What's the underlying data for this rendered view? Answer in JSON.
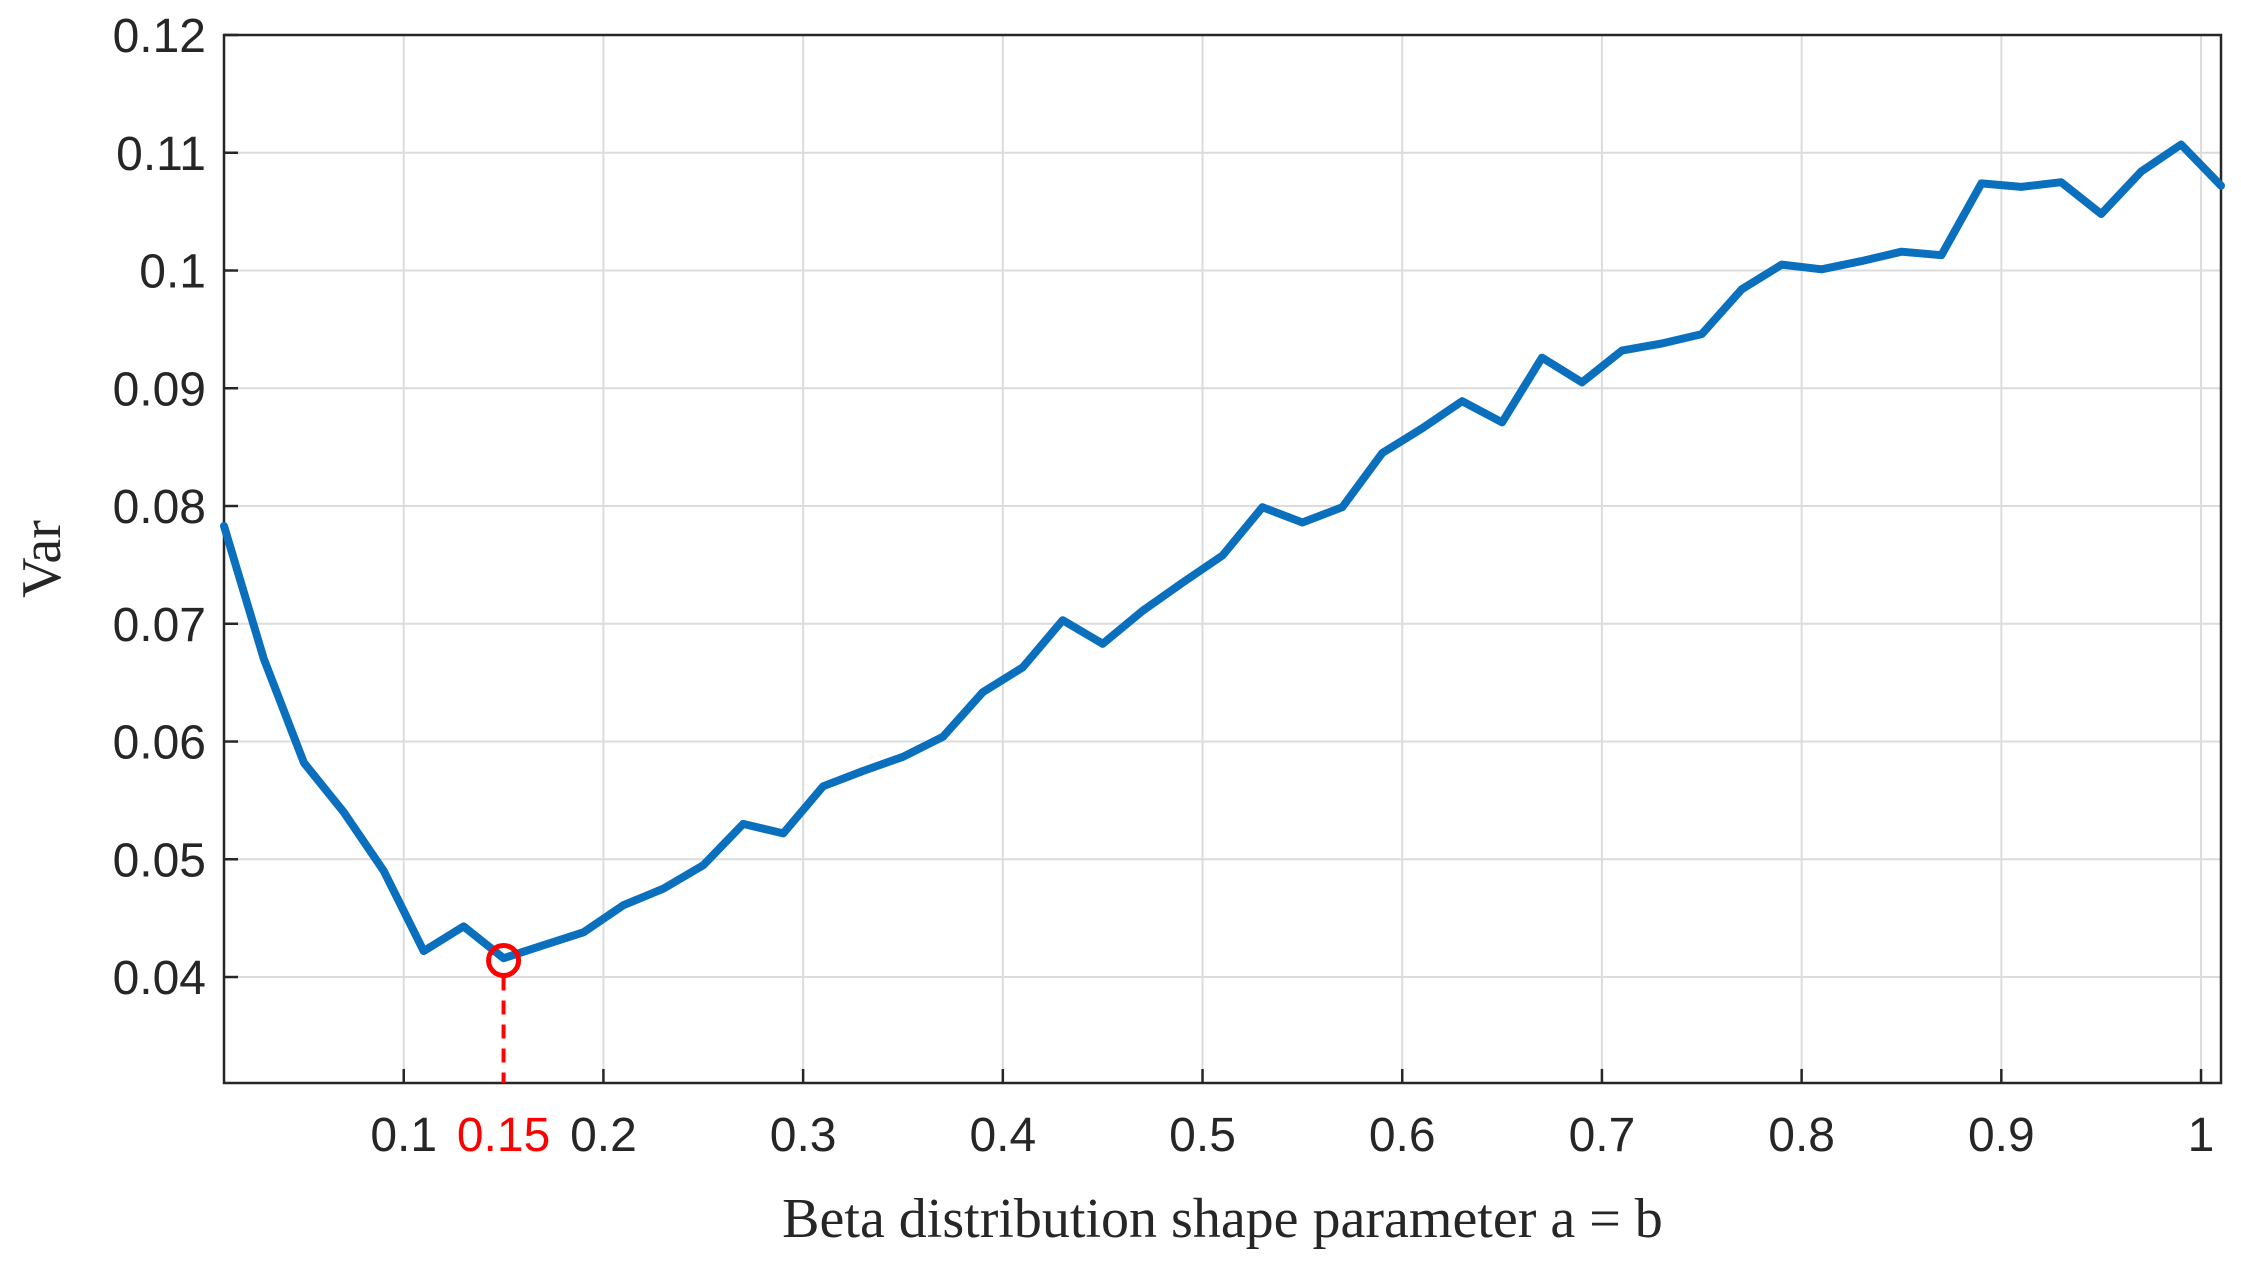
{
  "chart_data": {
    "type": "line",
    "xlabel": "Beta distribution shape parameter a = b",
    "ylabel": "Var",
    "xlim": [
      0.01,
      1.01
    ],
    "ylim": [
      0.031,
      0.12
    ],
    "grid": true,
    "xticks": [
      0.1,
      0.2,
      0.3,
      0.4,
      0.5,
      0.6,
      0.7,
      0.8,
      0.9,
      1
    ],
    "xtick_labels": [
      "0.1",
      "0.2",
      "0.3",
      "0.4",
      "0.5",
      "0.6",
      "0.7",
      "0.8",
      "0.9",
      "1"
    ],
    "yticks": [
      0.04,
      0.05,
      0.06,
      0.07,
      0.08,
      0.09,
      0.1,
      0.11,
      0.12
    ],
    "ytick_labels": [
      "0.04",
      "0.05",
      "0.06",
      "0.07",
      "0.08",
      "0.09",
      "0.1",
      "0.11",
      "0.12"
    ],
    "series": [
      {
        "color": "#0a6fbd",
        "x": [
          0.01,
          0.03,
          0.05,
          0.07,
          0.09,
          0.11,
          0.13,
          0.15,
          0.17,
          0.19,
          0.21,
          0.23,
          0.25,
          0.27,
          0.29,
          0.31,
          0.33,
          0.35,
          0.37,
          0.39,
          0.41,
          0.43,
          0.45,
          0.47,
          0.49,
          0.51,
          0.53,
          0.55,
          0.57,
          0.59,
          0.61,
          0.63,
          0.65,
          0.67,
          0.69,
          0.71,
          0.73,
          0.75,
          0.77,
          0.79,
          0.81,
          0.83,
          0.85,
          0.87,
          0.89,
          0.91,
          0.93,
          0.95,
          0.97,
          0.99,
          1.01
        ],
        "y": [
          0.0783,
          0.067,
          0.0582,
          0.054,
          0.049,
          0.0422,
          0.0443,
          0.0416,
          0.0427,
          0.0438,
          0.0461,
          0.0475,
          0.0495,
          0.053,
          0.0522,
          0.0562,
          0.0575,
          0.0587,
          0.0604,
          0.0642,
          0.0663,
          0.0703,
          0.0683,
          0.0711,
          0.0735,
          0.0758,
          0.0799,
          0.0786,
          0.0799,
          0.0845,
          0.0866,
          0.0889,
          0.0871,
          0.0926,
          0.0905,
          0.0932,
          0.0938,
          0.0946,
          0.0984,
          0.1005,
          0.1001,
          0.1008,
          0.1016,
          0.1013,
          0.1074,
          0.1071,
          0.1075,
          0.1048,
          0.1084,
          0.1107,
          0.1072
        ]
      }
    ],
    "highlight": {
      "x": 0.15,
      "y": 0.0414,
      "label": "0.15",
      "color": "#ff0000"
    }
  }
}
